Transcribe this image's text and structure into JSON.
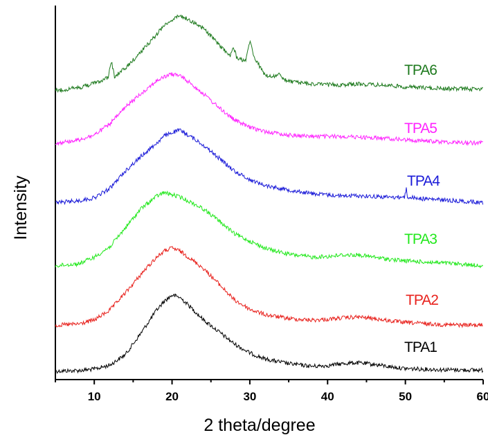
{
  "chart_data": {
    "type": "line",
    "title": "",
    "xlabel": "2 theta/degree",
    "ylabel": "Intensity",
    "xlim": [
      5,
      60
    ],
    "xticks": [
      10,
      20,
      30,
      40,
      50,
      60
    ],
    "y_ticks_shown": false,
    "grid": false,
    "legend": "inline labels at right",
    "offset_stacked": true,
    "series": [
      {
        "name": "TPA1",
        "color": "#000000",
        "points": [
          [
            5,
            0.3
          ],
          [
            8,
            1.0
          ],
          [
            10,
            2.8
          ],
          [
            12,
            8
          ],
          [
            14,
            22
          ],
          [
            16,
            50
          ],
          [
            18,
            80
          ],
          [
            19,
            92
          ],
          [
            20,
            100
          ],
          [
            21,
            97
          ],
          [
            22,
            88
          ],
          [
            24,
            68
          ],
          [
            26,
            52
          ],
          [
            28,
            36
          ],
          [
            30,
            24
          ],
          [
            32,
            16
          ],
          [
            35,
            10
          ],
          [
            38,
            6.5
          ],
          [
            40,
            7.5
          ],
          [
            42,
            10
          ],
          [
            43,
            11
          ],
          [
            44,
            11
          ],
          [
            46,
            9
          ],
          [
            48,
            6
          ],
          [
            50,
            3.5
          ],
          [
            55,
            2
          ],
          [
            60,
            1.5
          ]
        ]
      },
      {
        "name": "TPA2",
        "color": "#e8211c",
        "points": [
          [
            5,
            0.3
          ],
          [
            8,
            2
          ],
          [
            10,
            7
          ],
          [
            12,
            20
          ],
          [
            14,
            42
          ],
          [
            16,
            66
          ],
          [
            18,
            88
          ],
          [
            19,
            96
          ],
          [
            20,
            100
          ],
          [
            21,
            96
          ],
          [
            22,
            89
          ],
          [
            24,
            74
          ],
          [
            26,
            54
          ],
          [
            28,
            33
          ],
          [
            30,
            21
          ],
          [
            32,
            14
          ],
          [
            35,
            9
          ],
          [
            38,
            7
          ],
          [
            40,
            8
          ],
          [
            42,
            10
          ],
          [
            44,
            11
          ],
          [
            46,
            9
          ],
          [
            48,
            6
          ],
          [
            50,
            4
          ],
          [
            55,
            1
          ],
          [
            60,
            0.5
          ]
        ]
      },
      {
        "name": "TPA3",
        "color": "#22e81c",
        "points": [
          [
            5,
            0.3
          ],
          [
            8,
            3
          ],
          [
            10,
            12
          ],
          [
            12,
            26
          ],
          [
            14,
            52
          ],
          [
            16,
            78
          ],
          [
            18,
            95
          ],
          [
            19,
            100
          ],
          [
            20,
            97
          ],
          [
            21,
            94
          ],
          [
            22,
            89
          ],
          [
            24,
            78
          ],
          [
            26,
            62
          ],
          [
            28,
            44
          ],
          [
            30,
            34
          ],
          [
            32,
            24
          ],
          [
            35,
            16
          ],
          [
            38,
            12
          ],
          [
            40,
            13
          ],
          [
            42,
            15
          ],
          [
            44,
            15
          ],
          [
            46,
            12
          ],
          [
            48,
            9
          ],
          [
            50,
            7
          ],
          [
            55,
            4
          ],
          [
            60,
            0.5
          ]
        ]
      },
      {
        "name": "TPA4",
        "color": "#1a1ad8",
        "points": [
          [
            5,
            0.3
          ],
          [
            8,
            3
          ],
          [
            10,
            7
          ],
          [
            12,
            20
          ],
          [
            14,
            44
          ],
          [
            16,
            64
          ],
          [
            18,
            82
          ],
          [
            19,
            92
          ],
          [
            20,
            97
          ],
          [
            21,
            100
          ],
          [
            22,
            94
          ],
          [
            24,
            80
          ],
          [
            26,
            62
          ],
          [
            28,
            44
          ],
          [
            30,
            32
          ],
          [
            32,
            24
          ],
          [
            35,
            18
          ],
          [
            38,
            13
          ],
          [
            40,
            11
          ],
          [
            42,
            10
          ],
          [
            44,
            10
          ],
          [
            46,
            9
          ],
          [
            48,
            8
          ],
          [
            49.9,
            8
          ],
          [
            50.1,
            20
          ],
          [
            50.3,
            8
          ],
          [
            52,
            6
          ],
          [
            55,
            4
          ],
          [
            60,
            0.5
          ]
        ]
      },
      {
        "name": "TPA5",
        "color": "#ff22ff",
        "points": [
          [
            5,
            0.3
          ],
          [
            8,
            5
          ],
          [
            10,
            12
          ],
          [
            12,
            28
          ],
          [
            14,
            52
          ],
          [
            16,
            72
          ],
          [
            18,
            90
          ],
          [
            19,
            96
          ],
          [
            20,
            100
          ],
          [
            21,
            98
          ],
          [
            22,
            90
          ],
          [
            24,
            72
          ],
          [
            26,
            52
          ],
          [
            28,
            34
          ],
          [
            30,
            23
          ],
          [
            32,
            17
          ],
          [
            35,
            12
          ],
          [
            38,
            10
          ],
          [
            40,
            10
          ],
          [
            42,
            10
          ],
          [
            44,
            9
          ],
          [
            46,
            8
          ],
          [
            48,
            7
          ],
          [
            50,
            5
          ],
          [
            55,
            2
          ],
          [
            60,
            0.5
          ]
        ]
      },
      {
        "name": "TPA6",
        "color": "#1e7a1e",
        "points": [
          [
            5,
            0.3
          ],
          [
            8,
            4
          ],
          [
            10,
            10
          ],
          [
            11.8,
            18
          ],
          [
            12.2,
            40
          ],
          [
            12.6,
            19
          ],
          [
            14,
            30
          ],
          [
            16,
            52
          ],
          [
            18,
            75
          ],
          [
            19,
            88
          ],
          [
            20,
            95
          ],
          [
            21,
            100
          ],
          [
            22,
            96
          ],
          [
            24,
            84
          ],
          [
            26,
            62
          ],
          [
            27.5,
            46
          ],
          [
            27.9,
            60
          ],
          [
            28.3,
            44
          ],
          [
            29.5,
            40
          ],
          [
            30,
            67
          ],
          [
            30.6,
            44
          ],
          [
            32,
            20
          ],
          [
            33.4,
            19
          ],
          [
            33.7,
            25
          ],
          [
            34.2,
            15
          ],
          [
            36,
            11
          ],
          [
            38,
            9
          ],
          [
            40,
            8
          ],
          [
            42,
            8
          ],
          [
            44,
            9
          ],
          [
            46,
            8
          ],
          [
            48,
            7
          ],
          [
            50,
            5
          ],
          [
            55,
            3
          ],
          [
            60,
            2
          ]
        ]
      }
    ]
  }
}
